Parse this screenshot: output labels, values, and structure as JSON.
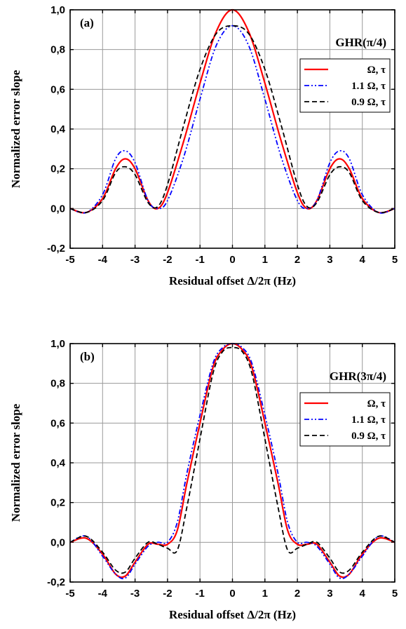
{
  "chart_data": [
    {
      "type": "line",
      "panel_label": "(a)",
      "title": "GHR(π/4)",
      "xlabel": "Residual offset Δ/2π (Hz)",
      "ylabel": "Normalized error slope",
      "xlim": [
        -5,
        5
      ],
      "ylim": [
        -0.2,
        1.0
      ],
      "xticks": [
        -5,
        -4,
        -3,
        -2,
        -1,
        0,
        1,
        2,
        3,
        4,
        5
      ],
      "xtick_labels": [
        "-5",
        "-4",
        "-3",
        "-2",
        "-1",
        "0",
        "1",
        "2",
        "3",
        "4",
        "5"
      ],
      "yticks": [
        -0.2,
        0.0,
        0.2,
        0.4,
        0.6,
        0.8,
        1.0
      ],
      "ytick_labels": [
        "-0,2",
        "0,0",
        "0,2",
        "0,4",
        "0,6",
        "0,8",
        "1,0"
      ],
      "grid": true,
      "legend_position": "right",
      "series": [
        {
          "name": "Ω, τ",
          "color": "#ff0000",
          "dash": "solid",
          "x": [
            -5,
            -4.5,
            -4,
            -3.6,
            -3.3,
            -3,
            -2.6,
            -2.3,
            -2,
            -1.5,
            -1,
            -0.5,
            0,
            0.5,
            1,
            1.5,
            2,
            2.3,
            2.6,
            3,
            3.3,
            3.6,
            4,
            4.5,
            5
          ],
          "y": [
            0.0,
            -0.02,
            0.05,
            0.2,
            0.25,
            0.2,
            0.04,
            0.0,
            0.08,
            0.34,
            0.63,
            0.89,
            1.0,
            0.89,
            0.63,
            0.34,
            0.08,
            0.0,
            0.04,
            0.2,
            0.25,
            0.2,
            0.05,
            -0.02,
            0.0
          ]
        },
        {
          "name": "1.1 Ω, τ",
          "color": "#0000ff",
          "dash": "dashdotdot",
          "x": [
            -5,
            -4.5,
            -4,
            -3.6,
            -3.3,
            -3,
            -2.6,
            -2.3,
            -2,
            -1.5,
            -1,
            -0.5,
            0,
            0.5,
            1,
            1.5,
            2,
            2.3,
            2.6,
            3,
            3.3,
            3.6,
            4,
            4.5,
            5
          ],
          "y": [
            0.0,
            -0.02,
            0.07,
            0.25,
            0.29,
            0.23,
            0.04,
            0.0,
            0.04,
            0.26,
            0.55,
            0.82,
            0.92,
            0.82,
            0.55,
            0.26,
            0.04,
            0.0,
            0.04,
            0.23,
            0.29,
            0.25,
            0.07,
            -0.02,
            0.0
          ]
        },
        {
          "name": "0.9 Ω, τ",
          "color": "#000000",
          "dash": "dashed",
          "x": [
            -5,
            -4.5,
            -4,
            -3.6,
            -3.3,
            -3,
            -2.6,
            -2.3,
            -2,
            -1.5,
            -1,
            -0.5,
            0,
            0.5,
            1,
            1.5,
            2,
            2.3,
            2.6,
            3,
            3.3,
            3.6,
            4,
            4.5,
            5
          ],
          "y": [
            0.0,
            -0.02,
            0.04,
            0.18,
            0.21,
            0.17,
            0.03,
            0.01,
            0.12,
            0.42,
            0.7,
            0.88,
            0.92,
            0.88,
            0.7,
            0.42,
            0.12,
            0.01,
            0.03,
            0.17,
            0.21,
            0.18,
            0.04,
            -0.02,
            0.0
          ]
        }
      ]
    },
    {
      "type": "line",
      "panel_label": "(b)",
      "title": "GHR(3π/4)",
      "xlabel": "Residual offset Δ/2π (Hz)",
      "ylabel": "Normalized error slope",
      "xlim": [
        -5,
        5
      ],
      "ylim": [
        -0.2,
        1.0
      ],
      "xticks": [
        -5,
        -4,
        -3,
        -2,
        -1,
        0,
        1,
        2,
        3,
        4,
        5
      ],
      "xtick_labels": [
        "-5",
        "-4",
        "-3",
        "-2",
        "-1",
        "0",
        "1",
        "2",
        "3",
        "4",
        "5"
      ],
      "yticks": [
        -0.2,
        0.0,
        0.2,
        0.4,
        0.6,
        0.8,
        1.0
      ],
      "ytick_labels": [
        "-0,2",
        "0,0",
        "0,2",
        "0,4",
        "0,6",
        "0,8",
        "1,0"
      ],
      "grid": true,
      "legend_position": "right",
      "series": [
        {
          "name": "Ω, τ",
          "color": "#ff0000",
          "dash": "solid",
          "x": [
            -5,
            -4.5,
            -4,
            -3.6,
            -3.3,
            -3,
            -2.6,
            -2.3,
            -2,
            -1.7,
            -1.4,
            -1,
            -0.6,
            -0.3,
            0,
            0.3,
            0.6,
            1,
            1.4,
            1.7,
            2,
            2.3,
            2.6,
            3,
            3.3,
            3.6,
            4,
            4.5,
            5
          ],
          "y": [
            0.0,
            0.02,
            -0.06,
            -0.16,
            -0.17,
            -0.1,
            -0.01,
            -0.01,
            -0.01,
            0.06,
            0.3,
            0.6,
            0.88,
            0.97,
            1.0,
            0.97,
            0.88,
            0.6,
            0.3,
            0.06,
            -0.01,
            -0.01,
            -0.01,
            -0.1,
            -0.17,
            -0.16,
            -0.06,
            0.02,
            0.0
          ]
        },
        {
          "name": "1.1 Ω, τ",
          "color": "#0000ff",
          "dash": "dashdotdot",
          "x": [
            -5,
            -4.5,
            -4,
            -3.6,
            -3.3,
            -3,
            -2.6,
            -2.3,
            -2,
            -1.7,
            -1.4,
            -1,
            -0.6,
            -0.3,
            0,
            0.3,
            0.6,
            1,
            1.4,
            1.7,
            2,
            2.3,
            2.6,
            3,
            3.3,
            3.6,
            4,
            4.5,
            5
          ],
          "y": [
            0.0,
            0.03,
            -0.07,
            -0.16,
            -0.18,
            -0.11,
            -0.02,
            0.0,
            0.0,
            0.1,
            0.35,
            0.64,
            0.9,
            0.98,
            1.0,
            0.98,
            0.9,
            0.64,
            0.35,
            0.1,
            0.0,
            0.0,
            -0.02,
            -0.11,
            -0.18,
            -0.16,
            -0.07,
            0.03,
            0.0
          ]
        },
        {
          "name": "0.9 Ω, τ",
          "color": "#000000",
          "dash": "dashed",
          "x": [
            -5,
            -4.5,
            -4,
            -3.6,
            -3.3,
            -3,
            -2.6,
            -2.3,
            -2,
            -1.7,
            -1.4,
            -1,
            -0.6,
            -0.3,
            0,
            0.3,
            0.6,
            1,
            1.4,
            1.7,
            2,
            2.3,
            2.6,
            3,
            3.3,
            3.6,
            4,
            4.5,
            5
          ],
          "y": [
            0.0,
            0.03,
            -0.05,
            -0.14,
            -0.15,
            -0.08,
            0.0,
            -0.01,
            -0.03,
            -0.04,
            0.18,
            0.52,
            0.85,
            0.96,
            0.98,
            0.96,
            0.85,
            0.52,
            0.18,
            -0.04,
            -0.03,
            -0.01,
            0.0,
            -0.08,
            -0.15,
            -0.14,
            -0.05,
            0.03,
            0.0
          ]
        }
      ]
    }
  ]
}
